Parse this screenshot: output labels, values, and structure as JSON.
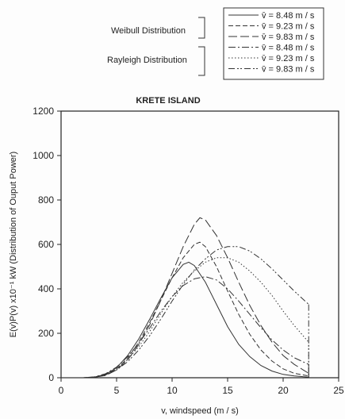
{
  "chart_data": {
    "type": "line",
    "title": "KRETE ISLAND",
    "xlabel": "v, windspeed (m / s)",
    "ylabel": "E(v)P(v) x10⁻¹ kW (Distribution of Ouput Power)",
    "xlim": [
      0,
      25
    ],
    "ylim": [
      0,
      1200
    ],
    "xticks": [
      0,
      5,
      10,
      15,
      20,
      25
    ],
    "yticks": [
      0,
      200,
      400,
      600,
      800,
      1000,
      1200
    ],
    "grid": false,
    "legend_position": "top-right",
    "legend_groups": [
      {
        "label": "Weibull Distribution",
        "series_indexes": [
          0,
          1,
          2
        ]
      },
      {
        "label": "Rayleigh Distribution",
        "series_indexes": [
          3,
          4,
          5
        ]
      }
    ],
    "series": [
      {
        "name": "v̄ = 8.48 m / s",
        "style": "solid",
        "x": [
          0,
          2,
          3,
          4,
          5,
          6,
          7,
          8,
          9,
          10,
          11,
          11.5,
          12,
          13,
          14,
          15,
          16,
          17,
          18,
          19,
          20,
          21,
          22.3
        ],
        "y": [
          0,
          0,
          3,
          15,
          45,
          100,
          175,
          265,
          360,
          450,
          510,
          520,
          505,
          430,
          330,
          230,
          150,
          95,
          55,
          30,
          15,
          8,
          3
        ]
      },
      {
        "name": "v̄ = 9.23 m / s",
        "style": "dashed",
        "x": [
          0,
          2,
          3,
          4,
          5,
          6,
          7,
          8,
          9,
          10,
          11,
          12,
          12.5,
          13,
          14,
          15,
          16,
          17,
          18,
          19,
          20,
          21,
          22.3
        ],
        "y": [
          0,
          0,
          3,
          12,
          40,
          88,
          160,
          250,
          350,
          450,
          540,
          600,
          610,
          590,
          500,
          390,
          285,
          195,
          125,
          75,
          40,
          20,
          8
        ]
      },
      {
        "name": "v̄ = 9.83 m / s",
        "style": "long-dash",
        "x": [
          0,
          2,
          3,
          4,
          5,
          6,
          7,
          8,
          9,
          10,
          11,
          12,
          12.5,
          13,
          14,
          15,
          16,
          17,
          18,
          19,
          20,
          21,
          22.3
        ],
        "y": [
          0,
          0,
          2,
          10,
          35,
          80,
          150,
          240,
          350,
          470,
          590,
          690,
          720,
          710,
          640,
          540,
          430,
          325,
          235,
          160,
          100,
          60,
          20
        ]
      },
      {
        "name": "v̄ = 8.48 m / s",
        "style": "dash-dot",
        "x": [
          0,
          2,
          3,
          4,
          5,
          6,
          7,
          8,
          9,
          10,
          11,
          12,
          13,
          14,
          15,
          16,
          17,
          18,
          19,
          20,
          21,
          22.3
        ],
        "y": [
          0,
          0,
          4,
          18,
          48,
          95,
          155,
          225,
          300,
          365,
          415,
          445,
          455,
          440,
          400,
          345,
          285,
          225,
          170,
          125,
          90,
          60
        ]
      },
      {
        "name": "v̄ = 9.23 m / s",
        "style": "dotted",
        "x": [
          0,
          2,
          3,
          4,
          5,
          6,
          7,
          8,
          9,
          10,
          11,
          12,
          13,
          14,
          15,
          16,
          17,
          18,
          19,
          20,
          21,
          22.3
        ],
        "y": [
          0,
          0,
          3,
          15,
          40,
          82,
          140,
          210,
          290,
          365,
          430,
          480,
          520,
          540,
          540,
          520,
          480,
          430,
          370,
          300,
          235,
          160
        ]
      },
      {
        "name": "v̄ = 9.83 m / s",
        "style": "dash-dot-dot",
        "x": [
          0,
          2,
          3,
          4,
          5,
          6,
          7,
          8,
          9,
          10,
          11,
          12,
          13,
          14,
          15,
          16,
          17,
          18,
          19,
          20,
          21,
          22.3
        ],
        "y": [
          0,
          0,
          2,
          12,
          35,
          72,
          125,
          190,
          265,
          345,
          420,
          485,
          535,
          575,
          590,
          590,
          570,
          535,
          490,
          440,
          390,
          330
        ]
      }
    ]
  }
}
